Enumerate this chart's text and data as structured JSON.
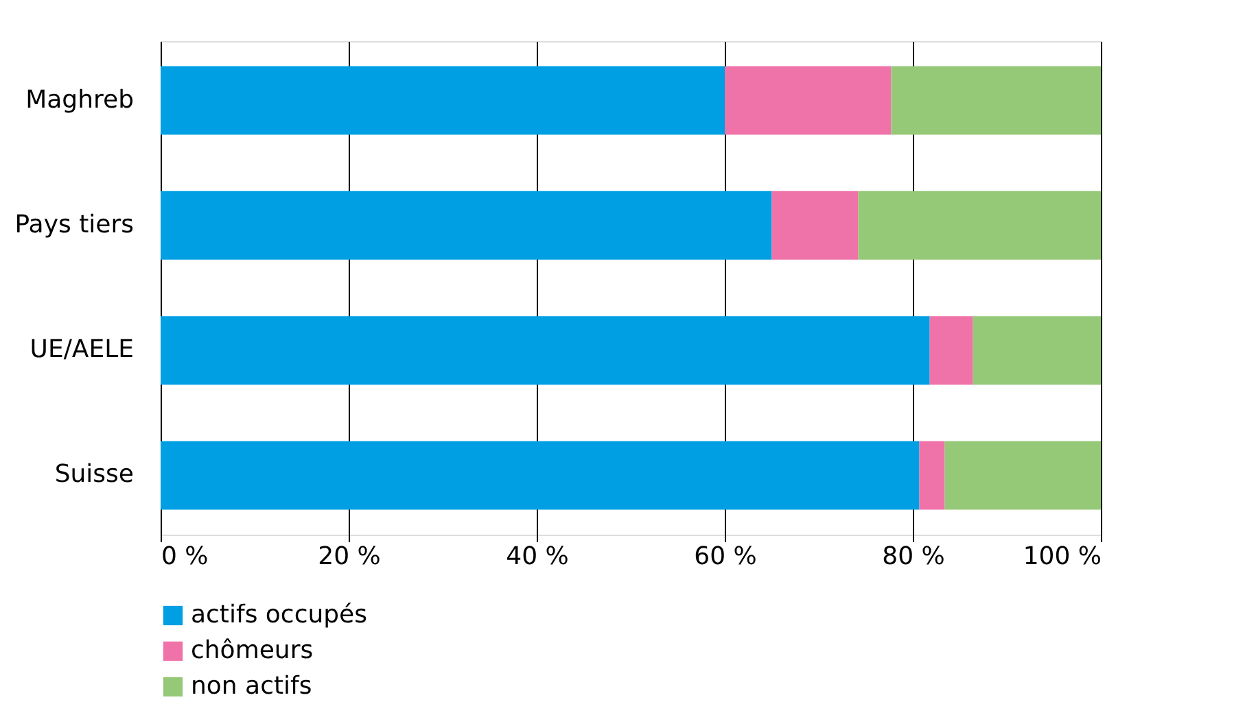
{
  "chart_data": {
    "type": "bar",
    "orientation": "horizontal",
    "stacked": true,
    "categories": [
      "Maghreb",
      "Pays tiers",
      "UE/AELE",
      "Suisse"
    ],
    "series": [
      {
        "name": "actifs occupés",
        "color": "#009fe3",
        "values": [
          60.0,
          65.0,
          81.8,
          80.7
        ]
      },
      {
        "name": "chômeurs",
        "color": "#ef73a9",
        "values": [
          17.7,
          9.2,
          4.6,
          2.7
        ]
      },
      {
        "name": "non actifs",
        "color": "#95c978",
        "values": [
          22.3,
          25.8,
          13.6,
          16.6
        ]
      }
    ],
    "xlim": [
      0,
      100
    ],
    "xticks": [
      {
        "value": 0,
        "label": "0 %"
      },
      {
        "value": 20,
        "label": "20 %"
      },
      {
        "value": 40,
        "label": "40 %"
      },
      {
        "value": 60,
        "label": "60 %"
      },
      {
        "value": 80,
        "label": "80 %"
      },
      {
        "value": 100,
        "label": "100 %"
      }
    ],
    "grid": "x",
    "legend": "bottom left"
  }
}
